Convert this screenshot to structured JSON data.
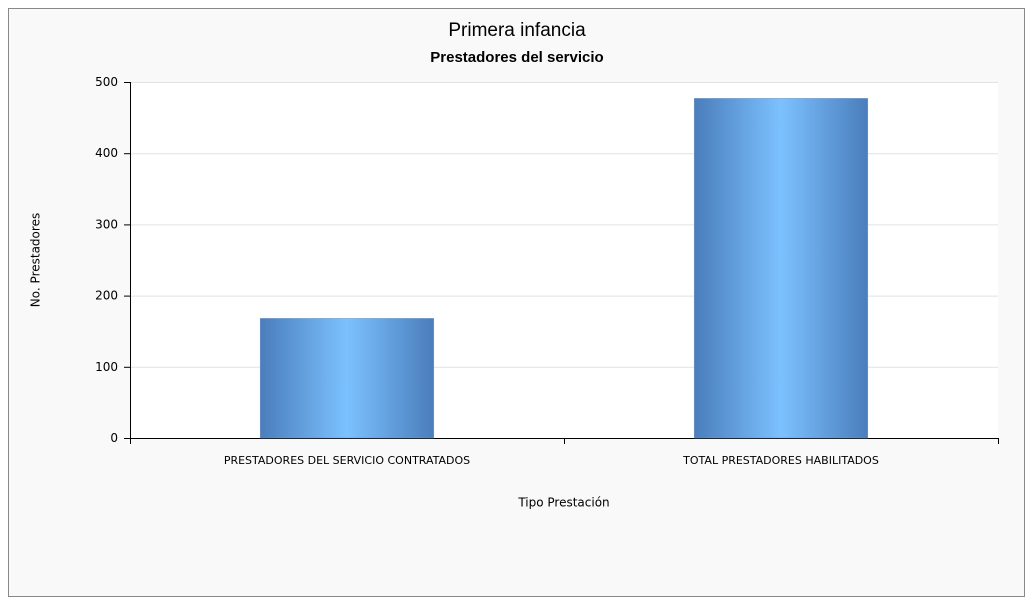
{
  "chart_data": {
    "type": "bar",
    "title": "Primera infancia",
    "subtitle": "Prestadores del servicio",
    "x_label": "Tipo Prestación",
    "y_label": "No. Prestadores",
    "categories": [
      "PRESTADORES DEL SERVICIO CONTRATADOS",
      "TOTAL PRESTADORES HABILITADOS"
    ],
    "values": [
      168,
      477
    ],
    "color": "#4a7dbb",
    "ylim": [
      0,
      500
    ],
    "yticks": [
      0,
      100,
      200,
      300,
      400,
      500
    ],
    "grid": true
  }
}
